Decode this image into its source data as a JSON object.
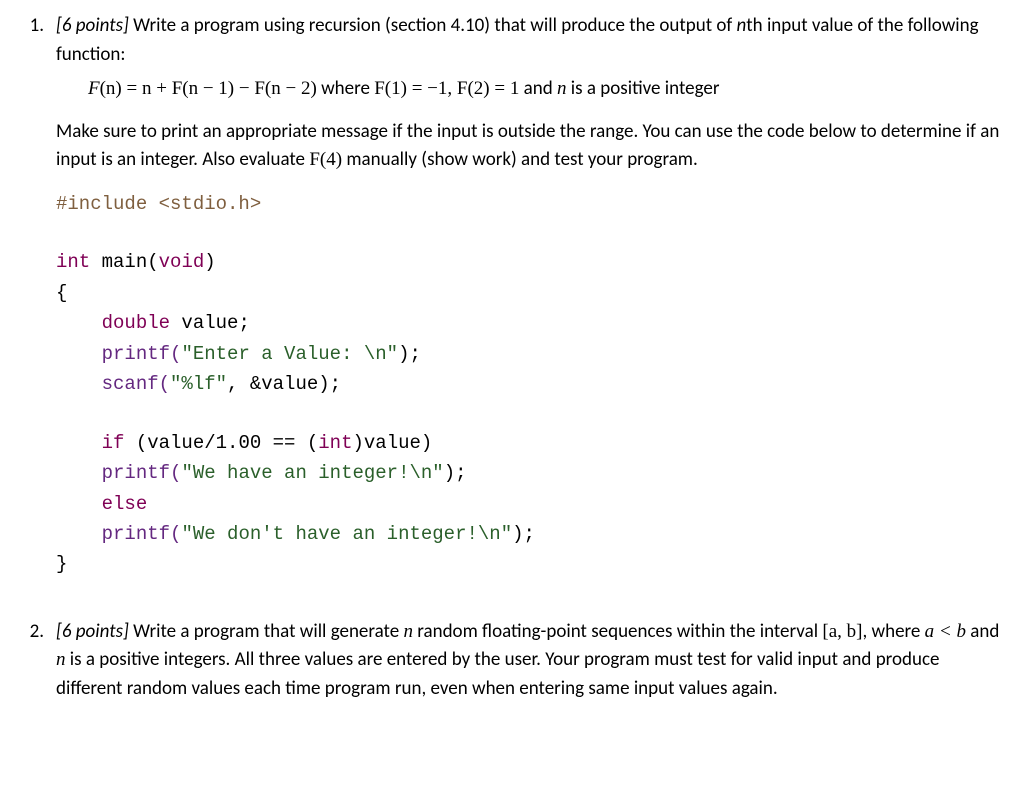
{
  "q1": {
    "number": "1.",
    "points_label": "[6 points]",
    "text1a": " Write a program using recursion (section 4.10) that will produce the output of ",
    "text1b": "n",
    "text1c": "th input value of the following function:",
    "formula": {
      "fn": "F",
      "eq": "(n) = n + F(n − 1) − F(n − 2)",
      "where": " where ",
      "f1": "F(1) = −1,  F(2) = 1",
      "and": " and  ",
      "nvar": "n",
      "tail": " is a positive integer"
    },
    "para2a": "Make sure to print an appropriate message if the input is outside the range.  You can use the code below to determine if an input is an integer.  Also evaluate ",
    "para2b": "F(4)",
    "para2c": " manually (show work) and test your program.",
    "code": {
      "l1": {
        "pp": "#include",
        "rest": " <stdio.h>"
      },
      "l2": {
        "kw1": "int",
        "mid": " main(",
        "kw2": "void",
        "end": ")"
      },
      "l3": "{",
      "l4": {
        "indent": "    ",
        "kw": "double",
        "rest": " value;"
      },
      "l5": {
        "indent": "    ",
        "fn": "printf(",
        "str": "\"Enter a Value: \\n\"",
        "end": ");"
      },
      "l6": {
        "indent": "    ",
        "fn": "scanf(",
        "str": "\"%lf\"",
        "mid": ", &value);",
        "end": ""
      },
      "l7": {
        "indent": "    ",
        "kw": "if",
        "rest1": " (value/1.00 == (",
        "kw2": "int",
        "rest2": ")value)"
      },
      "l8": {
        "indent": "    ",
        "fn": "printf(",
        "str": "\"We have an integer!\\n\"",
        "end": ");"
      },
      "l9": {
        "indent": "    ",
        "kw": "else"
      },
      "l10": {
        "indent": "    ",
        "fn": "printf(",
        "str": "\"We don't have an integer!\\n\"",
        "end": ");"
      },
      "l11": "}"
    }
  },
  "q2": {
    "number": "2.",
    "points_label": "[6 points]",
    "text1a": " Write a program that will generate ",
    "text1b": "n",
    "text1c": " random floating-point sequences within the interval ",
    "text2a": "[a, b]",
    "text2b": ", where ",
    "text2c": "a < b",
    "text2d": "  and ",
    "text2e": "n",
    "text2f": " is a positive integers.  All three values are entered by the user.  Your program must test for valid input and produce different random values each time program run, even when entering same input values again."
  },
  "colors": {
    "text": "#000000",
    "preprocessor": "#7f5f3f",
    "keyword": "#7f0055",
    "string": "#2a5f2a",
    "builtin": "#642880",
    "background": "#ffffff"
  },
  "font": {
    "body": "Calibri",
    "code": "Courier New",
    "math": "Cambria Math",
    "size_body": 19,
    "size_code": 19
  }
}
